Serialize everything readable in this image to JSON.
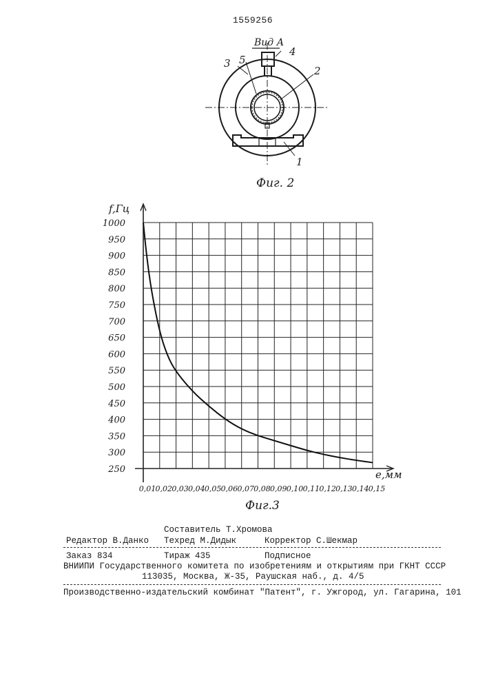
{
  "header": {
    "patent_number": "1559256"
  },
  "figure2": {
    "view_label": "Вид А",
    "callouts": [
      "1",
      "2",
      "3",
      "4",
      "5"
    ],
    "caption": "Фиг. 2"
  },
  "figure3": {
    "caption": "Фиг.3"
  },
  "chart_data": {
    "type": "line",
    "ylabel": "f,Гц",
    "xlabel": "e,мм",
    "x_ticks": [
      "0,01",
      "0,02",
      "0,03",
      "0,04",
      "0,05",
      "0,06",
      "0,07",
      "0,08",
      "0,09",
      "0,10",
      "0,11",
      "0,12",
      "0,13",
      "0,14",
      "0,15"
    ],
    "y_ticks": [
      "1000",
      "950",
      "900",
      "850",
      "800",
      "750",
      "700",
      "650",
      "600",
      "550",
      "500",
      "450",
      "400",
      "350",
      "300",
      "250"
    ],
    "xlim": [
      0.01,
      0.15
    ],
    "ylim": [
      250,
      1000
    ],
    "grid": true,
    "series": [
      {
        "x": [
          0.01,
          0.012,
          0.015,
          0.02,
          0.025,
          0.03,
          0.04,
          0.05,
          0.06,
          0.07,
          0.08,
          0.09,
          0.1,
          0.11,
          0.12,
          0.13,
          0.14,
          0.15
        ],
        "values": [
          1000,
          900,
          790,
          665,
          590,
          545,
          485,
          440,
          400,
          370,
          350,
          335,
          320,
          305,
          293,
          283,
          275,
          268
        ]
      }
    ]
  },
  "footer": {
    "compiler": "Составитель Т.Хромова",
    "editor": "Редактор В.Данко",
    "techred": "Техред М.Дидык",
    "proofreader": "Корректор С.Шекмар",
    "order": "Заказ 834",
    "circulation": "Тираж 435",
    "subscription": "Подписное",
    "institute": "ВНИИПИ Государственного комитета по изобретениям и открытиям при ГКНТ СССР",
    "address": "113035, Москва, Ж-35, Раушская наб., д. 4/5",
    "publisher": "Производственно-издательский комбинат \"Патент\", г. Ужгород, ул. Гагарина, 101"
  }
}
